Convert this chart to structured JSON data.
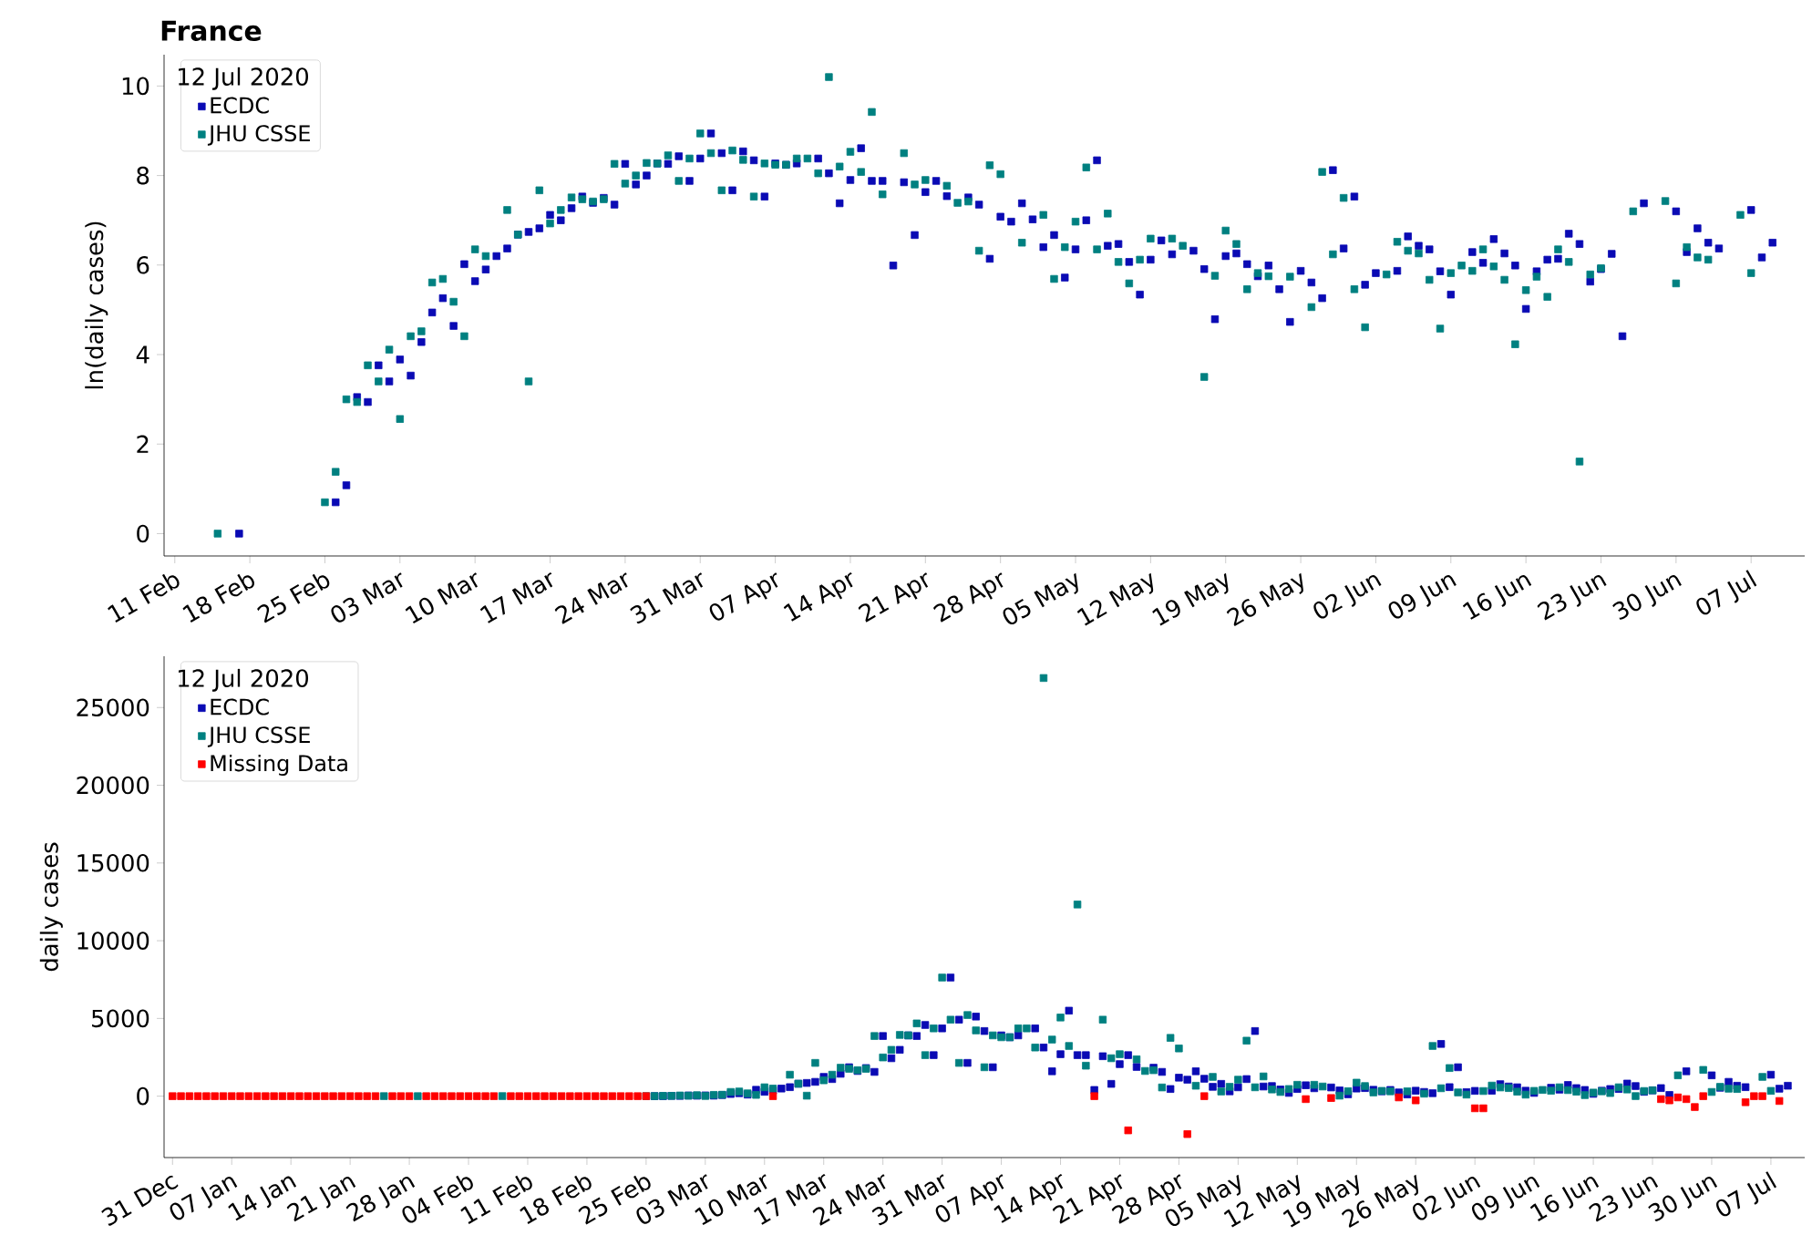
{
  "chart_data": [
    {
      "type": "scatter",
      "title": "France",
      "ylabel": "ln(daily cases)",
      "legend_title": "12 Jul 2020",
      "legend": "top left",
      "marker": "square",
      "xlim": [
        "2020-02-10",
        "2020-07-12"
      ],
      "ylim": [
        -0.5,
        10.7
      ],
      "yticks": [
        0,
        2,
        4,
        6,
        8,
        10
      ],
      "xticks": [
        {
          "value": "2020-02-11",
          "label": "11 Feb"
        },
        {
          "value": "2020-02-18",
          "label": "18 Feb"
        },
        {
          "value": "2020-02-25",
          "label": "25 Feb"
        },
        {
          "value": "2020-03-03",
          "label": "03 Mar"
        },
        {
          "value": "2020-03-10",
          "label": "10 Mar"
        },
        {
          "value": "2020-03-17",
          "label": "17 Mar"
        },
        {
          "value": "2020-03-24",
          "label": "24 Mar"
        },
        {
          "value": "2020-03-31",
          "label": "31 Mar"
        },
        {
          "value": "2020-04-07",
          "label": "07 Apr"
        },
        {
          "value": "2020-04-14",
          "label": "14 Apr"
        },
        {
          "value": "2020-04-21",
          "label": "21 Apr"
        },
        {
          "value": "2020-04-28",
          "label": "28 Apr"
        },
        {
          "value": "2020-05-05",
          "label": "05 May"
        },
        {
          "value": "2020-05-12",
          "label": "12 May"
        },
        {
          "value": "2020-05-19",
          "label": "19 May"
        },
        {
          "value": "2020-05-26",
          "label": "26 May"
        },
        {
          "value": "2020-06-02",
          "label": "02 Jun"
        },
        {
          "value": "2020-06-09",
          "label": "09 Jun"
        },
        {
          "value": "2020-06-16",
          "label": "16 Jun"
        },
        {
          "value": "2020-06-23",
          "label": "23 Jun"
        },
        {
          "value": "2020-06-30",
          "label": "30 Jun"
        },
        {
          "value": "2020-07-07",
          "label": "07 Jul"
        }
      ],
      "series": [
        {
          "name": "ECDC",
          "color": "#0a0ab4",
          "x": [
            "2020-02-17",
            "2020-02-26",
            "2020-02-27",
            "2020-02-28",
            "2020-02-29",
            "2020-03-01",
            "2020-03-02",
            "2020-03-03",
            "2020-03-04",
            "2020-03-05",
            "2020-03-06",
            "2020-03-07",
            "2020-03-08",
            "2020-03-09",
            "2020-03-10",
            "2020-03-11",
            "2020-03-12",
            "2020-03-13",
            "2020-03-14",
            "2020-03-15",
            "2020-03-16",
            "2020-03-17",
            "2020-03-18",
            "2020-03-19",
            "2020-03-20",
            "2020-03-21",
            "2020-03-22",
            "2020-03-23",
            "2020-03-24",
            "2020-03-25",
            "2020-03-26",
            "2020-03-27",
            "2020-03-28",
            "2020-03-29",
            "2020-03-30",
            "2020-03-31",
            "2020-04-01",
            "2020-04-02",
            "2020-04-03",
            "2020-04-04",
            "2020-04-05",
            "2020-04-06",
            "2020-04-07",
            "2020-04-08",
            "2020-04-09",
            "2020-04-11",
            "2020-04-12",
            "2020-04-13",
            "2020-04-14",
            "2020-04-15",
            "2020-04-16",
            "2020-04-17",
            "2020-04-18",
            "2020-04-19",
            "2020-04-20",
            "2020-04-21",
            "2020-04-22",
            "2020-04-23",
            "2020-04-25",
            "2020-04-26",
            "2020-04-27",
            "2020-04-28",
            "2020-04-29",
            "2020-04-30",
            "2020-05-01",
            "2020-05-02",
            "2020-05-03",
            "2020-05-04",
            "2020-05-05",
            "2020-05-06",
            "2020-05-07",
            "2020-05-08",
            "2020-05-09",
            "2020-05-10",
            "2020-05-11",
            "2020-05-12",
            "2020-05-13",
            "2020-05-14",
            "2020-05-16",
            "2020-05-17",
            "2020-05-18",
            "2020-05-19",
            "2020-05-20",
            "2020-05-21",
            "2020-05-22",
            "2020-05-23",
            "2020-05-24",
            "2020-05-25",
            "2020-05-26",
            "2020-05-27",
            "2020-05-28",
            "2020-05-29",
            "2020-05-30",
            "2020-05-31",
            "2020-06-01",
            "2020-06-02",
            "2020-06-04",
            "2020-06-05",
            "2020-06-06",
            "2020-06-07",
            "2020-06-08",
            "2020-06-09",
            "2020-06-11",
            "2020-06-12",
            "2020-06-13",
            "2020-06-14",
            "2020-06-15",
            "2020-06-16",
            "2020-06-17",
            "2020-06-18",
            "2020-06-19",
            "2020-06-20",
            "2020-06-21",
            "2020-06-22",
            "2020-06-23",
            "2020-06-24",
            "2020-06-25",
            "2020-06-27",
            "2020-06-30",
            "2020-07-01",
            "2020-07-02",
            "2020-07-03",
            "2020-07-04",
            "2020-07-07",
            "2020-07-08",
            "2020-07-09"
          ],
          "values": [
            0,
            0.7,
            1.08,
            3.05,
            2.94,
            3.76,
            3.4,
            3.89,
            3.53,
            4.28,
            4.94,
            5.26,
            4.64,
            6.02,
            5.64,
            5.9,
            6.2,
            6.37,
            6.68,
            6.74,
            6.82,
            7.12,
            7.0,
            7.27,
            7.53,
            7.39,
            7.5,
            7.35,
            8.26,
            7.8,
            8.0,
            8.27,
            8.26,
            8.43,
            7.88,
            8.38,
            8.94,
            8.5,
            7.67,
            8.54,
            8.34,
            7.53,
            8.27,
            8.24,
            8.27,
            8.38,
            8.05,
            7.38,
            7.9,
            8.61,
            7.88,
            7.88,
            5.99,
            7.85,
            6.67,
            7.63,
            7.88,
            7.54,
            7.51,
            7.35,
            6.14,
            7.08,
            6.97,
            7.38,
            7.02,
            6.4,
            6.67,
            5.72,
            6.35,
            7.0,
            8.34,
            6.43,
            6.47,
            6.07,
            5.34,
            6.12,
            6.55,
            6.24,
            6.32,
            5.91,
            4.79,
            6.2,
            6.26,
            6.02,
            5.75,
            5.99,
            5.46,
            4.73,
            5.87,
            5.61,
            5.26,
            8.12,
            6.37,
            7.53,
            5.56,
            5.82,
            5.87,
            6.64,
            6.43,
            6.35,
            5.86,
            5.34,
            6.29,
            6.05,
            6.58,
            6.26,
            5.99,
            5.02,
            5.86,
            6.12,
            6.14,
            6.7,
            6.47,
            5.63,
            5.91,
            6.25,
            4.41,
            7.38,
            7.2,
            6.29,
            6.82,
            6.5,
            6.37,
            7.23,
            6.17,
            6.5
          ]
        },
        {
          "name": "JHU CSSE",
          "color": "#008080",
          "x": [
            "2020-02-15",
            "2020-02-25",
            "2020-02-26",
            "2020-02-27",
            "2020-02-28",
            "2020-02-29",
            "2020-03-01",
            "2020-03-02",
            "2020-03-03",
            "2020-03-04",
            "2020-03-05",
            "2020-03-06",
            "2020-03-07",
            "2020-03-08",
            "2020-03-09",
            "2020-03-10",
            "2020-03-11",
            "2020-03-13",
            "2020-03-14",
            "2020-03-15",
            "2020-03-16",
            "2020-03-17",
            "2020-03-18",
            "2020-03-19",
            "2020-03-20",
            "2020-03-21",
            "2020-03-22",
            "2020-03-23",
            "2020-03-24",
            "2020-03-25",
            "2020-03-26",
            "2020-03-27",
            "2020-03-28",
            "2020-03-29",
            "2020-03-30",
            "2020-03-31",
            "2020-04-01",
            "2020-04-02",
            "2020-04-03",
            "2020-04-04",
            "2020-04-05",
            "2020-04-06",
            "2020-04-07",
            "2020-04-08",
            "2020-04-09",
            "2020-04-10",
            "2020-04-11",
            "2020-04-12",
            "2020-04-13",
            "2020-04-14",
            "2020-04-15",
            "2020-04-16",
            "2020-04-17",
            "2020-04-19",
            "2020-04-20",
            "2020-04-21",
            "2020-04-23",
            "2020-04-24",
            "2020-04-25",
            "2020-04-26",
            "2020-04-27",
            "2020-04-28",
            "2020-04-30",
            "2020-05-02",
            "2020-05-03",
            "2020-05-04",
            "2020-05-05",
            "2020-05-06",
            "2020-05-07",
            "2020-05-08",
            "2020-05-09",
            "2020-05-10",
            "2020-05-11",
            "2020-05-12",
            "2020-05-14",
            "2020-05-15",
            "2020-05-17",
            "2020-05-18",
            "2020-05-19",
            "2020-05-20",
            "2020-05-21",
            "2020-05-22",
            "2020-05-23",
            "2020-05-25",
            "2020-05-27",
            "2020-05-28",
            "2020-05-29",
            "2020-05-30",
            "2020-05-31",
            "2020-06-01",
            "2020-06-03",
            "2020-06-04",
            "2020-06-05",
            "2020-06-06",
            "2020-06-07",
            "2020-06-08",
            "2020-06-09",
            "2020-06-10",
            "2020-06-11",
            "2020-06-12",
            "2020-06-13",
            "2020-06-14",
            "2020-06-15",
            "2020-06-16",
            "2020-06-17",
            "2020-06-18",
            "2020-06-19",
            "2020-06-20",
            "2020-06-21",
            "2020-06-22",
            "2020-06-23",
            "2020-06-26",
            "2020-06-29",
            "2020-06-30",
            "2020-07-01",
            "2020-07-02",
            "2020-07-03",
            "2020-07-06",
            "2020-07-07"
          ],
          "values": [
            0,
            0.7,
            1.38,
            3.0,
            2.94,
            3.76,
            3.4,
            4.11,
            2.56,
            4.41,
            4.52,
            5.61,
            5.69,
            5.18,
            4.41,
            6.35,
            6.2,
            7.23,
            6.68,
            3.4,
            7.67,
            6.93,
            7.23,
            7.51,
            7.47,
            7.42,
            7.47,
            8.26,
            7.82,
            8.0,
            8.28,
            8.27,
            8.45,
            7.88,
            8.38,
            8.94,
            8.5,
            7.67,
            8.56,
            8.35,
            7.53,
            8.27,
            8.24,
            8.24,
            8.38,
            8.38,
            8.05,
            10.2,
            8.2,
            8.53,
            8.08,
            9.42,
            7.58,
            8.5,
            7.8,
            7.9,
            7.77,
            7.39,
            7.42,
            6.32,
            8.23,
            8.03,
            6.5,
            7.12,
            5.69,
            6.4,
            6.97,
            8.18,
            6.35,
            7.15,
            6.07,
            5.59,
            6.12,
            6.59,
            6.59,
            6.43,
            3.5,
            5.76,
            6.77,
            6.47,
            5.46,
            5.82,
            5.75,
            5.74,
            5.06,
            8.08,
            6.24,
            7.5,
            5.46,
            4.61,
            5.79,
            6.52,
            6.32,
            6.26,
            5.67,
            4.58,
            5.82,
            5.99,
            5.87,
            6.35,
            5.97,
            5.67,
            4.23,
            5.44,
            5.74,
            5.29,
            6.35,
            6.07,
            1.61,
            5.79,
            5.93,
            7.2,
            7.43,
            5.59,
            6.4,
            6.17,
            6.12,
            7.12,
            5.82
          ]
        }
      ]
    },
    {
      "type": "scatter",
      "ylabel": "daily cases",
      "legend_title": "12 Jul 2020",
      "legend": "top left",
      "marker": "square",
      "xlim": [
        "2019-12-30",
        "2020-07-11"
      ],
      "ylim": [
        -3950,
        28300
      ],
      "yticks": [
        0,
        5000,
        10000,
        15000,
        20000,
        25000
      ],
      "xticks": [
        {
          "value": "2019-12-31",
          "label": "31 Dec"
        },
        {
          "value": "2020-01-07",
          "label": "07 Jan"
        },
        {
          "value": "2020-01-14",
          "label": "14 Jan"
        },
        {
          "value": "2020-01-21",
          "label": "21 Jan"
        },
        {
          "value": "2020-01-28",
          "label": "28 Jan"
        },
        {
          "value": "2020-02-04",
          "label": "04 Feb"
        },
        {
          "value": "2020-02-11",
          "label": "11 Feb"
        },
        {
          "value": "2020-02-18",
          "label": "18 Feb"
        },
        {
          "value": "2020-02-25",
          "label": "25 Feb"
        },
        {
          "value": "2020-03-03",
          "label": "03 Mar"
        },
        {
          "value": "2020-03-10",
          "label": "10 Mar"
        },
        {
          "value": "2020-03-17",
          "label": "17 Mar"
        },
        {
          "value": "2020-03-24",
          "label": "24 Mar"
        },
        {
          "value": "2020-03-31",
          "label": "31 Mar"
        },
        {
          "value": "2020-04-07",
          "label": "07 Apr"
        },
        {
          "value": "2020-04-14",
          "label": "14 Apr"
        },
        {
          "value": "2020-04-21",
          "label": "21 Apr"
        },
        {
          "value": "2020-04-28",
          "label": "28 Apr"
        },
        {
          "value": "2020-05-05",
          "label": "05 May"
        },
        {
          "value": "2020-05-12",
          "label": "12 May"
        },
        {
          "value": "2020-05-19",
          "label": "19 May"
        },
        {
          "value": "2020-05-26",
          "label": "26 May"
        },
        {
          "value": "2020-06-02",
          "label": "02 Jun"
        },
        {
          "value": "2020-06-09",
          "label": "09 Jun"
        },
        {
          "value": "2020-06-16",
          "label": "16 Jun"
        },
        {
          "value": "2020-06-23",
          "label": "23 Jun"
        },
        {
          "value": "2020-06-30",
          "label": "30 Jun"
        },
        {
          "value": "2020-07-07",
          "label": "07 Jul"
        }
      ],
      "series": [
        {
          "name": "ECDC",
          "color": "#0a0ab4",
          "x": [
            "2020-02-26",
            "2020-02-27",
            "2020-02-28",
            "2020-02-29",
            "2020-03-01",
            "2020-03-02",
            "2020-03-03",
            "2020-03-04",
            "2020-03-05",
            "2020-03-06",
            "2020-03-07",
            "2020-03-08",
            "2020-03-09",
            "2020-03-10",
            "2020-03-11",
            "2020-03-12",
            "2020-03-13",
            "2020-03-14",
            "2020-03-15",
            "2020-03-16",
            "2020-03-17",
            "2020-03-18",
            "2020-03-19",
            "2020-03-20",
            "2020-03-21",
            "2020-03-22",
            "2020-03-23",
            "2020-03-24",
            "2020-03-25",
            "2020-03-26",
            "2020-03-27",
            "2020-03-28",
            "2020-03-29",
            "2020-03-30",
            "2020-03-31",
            "2020-04-01",
            "2020-04-02",
            "2020-04-03",
            "2020-04-04",
            "2020-04-05",
            "2020-04-06",
            "2020-04-07",
            "2020-04-08",
            "2020-04-09",
            "2020-04-11",
            "2020-04-12",
            "2020-04-13",
            "2020-04-14",
            "2020-04-15",
            "2020-04-16",
            "2020-04-17",
            "2020-04-18",
            "2020-04-19",
            "2020-04-20",
            "2020-04-21",
            "2020-04-22",
            "2020-04-23",
            "2020-04-25",
            "2020-04-26",
            "2020-04-27",
            "2020-04-28",
            "2020-04-29",
            "2020-04-30",
            "2020-05-01",
            "2020-05-02",
            "2020-05-03",
            "2020-05-04",
            "2020-05-05",
            "2020-05-06",
            "2020-05-07",
            "2020-05-08",
            "2020-05-09",
            "2020-05-10",
            "2020-05-11",
            "2020-05-12",
            "2020-05-13",
            "2020-05-14",
            "2020-05-16",
            "2020-05-17",
            "2020-05-18",
            "2020-05-19",
            "2020-05-20",
            "2020-05-21",
            "2020-05-22",
            "2020-05-23",
            "2020-05-24",
            "2020-05-25",
            "2020-05-26",
            "2020-05-27",
            "2020-05-28",
            "2020-05-29",
            "2020-05-30",
            "2020-05-31",
            "2020-06-01",
            "2020-06-02",
            "2020-06-04",
            "2020-06-05",
            "2020-06-06",
            "2020-06-07",
            "2020-06-08",
            "2020-06-09",
            "2020-06-11",
            "2020-06-12",
            "2020-06-13",
            "2020-06-14",
            "2020-06-15",
            "2020-06-16",
            "2020-06-17",
            "2020-06-18",
            "2020-06-19",
            "2020-06-20",
            "2020-06-21",
            "2020-06-22",
            "2020-06-23",
            "2020-06-24",
            "2020-06-25",
            "2020-06-27",
            "2020-06-30",
            "2020-07-01",
            "2020-07-02",
            "2020-07-03",
            "2020-07-04",
            "2020-07-07",
            "2020-07-08",
            "2020-07-09"
          ],
          "values": [
            2,
            3,
            21,
            19,
            43,
            30,
            49,
            34,
            72,
            140,
            190,
            100,
            410,
            280,
            370,
            490,
            580,
            800,
            850,
            920,
            1240,
            1100,
            1440,
            1860,
            1620,
            1810,
            1560,
            3870,
            2440,
            2980,
            3910,
            3870,
            4580,
            2640,
            4360,
            7630,
            4920,
            2140,
            5120,
            4190,
            1860,
            3910,
            3790,
            3910,
            4360,
            3130,
            1600,
            2700,
            5500,
            2640,
            2640,
            400,
            2570,
            790,
            2060,
            2640,
            1880,
            1830,
            1560,
            460,
            1190,
            1060,
            1600,
            1120,
            600,
            790,
            310,
            570,
            1100,
            4190,
            620,
            650,
            430,
            210,
            460,
            700,
            510,
            560,
            370,
            120,
            490,
            520,
            410,
            310,
            400,
            240,
            110,
            350,
            270,
            190,
            3360,
            580,
            1860,
            260,
            340,
            350,
            770,
            620,
            570,
            350,
            210,
            540,
            420,
            720,
            520,
            400,
            150,
            350,
            460,
            460,
            810,
            650,
            280,
            370,
            520,
            80,
            1600,
            1340,
            540,
            920,
            670,
            580,
            1380,
            480,
            670
          ]
        },
        {
          "name": "JHU CSSE",
          "color": "#008080",
          "x": [
            "2020-01-25",
            "2020-01-29",
            "2020-02-08",
            "2020-02-25",
            "2020-02-26",
            "2020-02-27",
            "2020-02-28",
            "2020-02-29",
            "2020-03-01",
            "2020-03-02",
            "2020-03-03",
            "2020-03-04",
            "2020-03-05",
            "2020-03-06",
            "2020-03-07",
            "2020-03-08",
            "2020-03-09",
            "2020-03-10",
            "2020-03-11",
            "2020-03-13",
            "2020-03-14",
            "2020-03-15",
            "2020-03-16",
            "2020-03-17",
            "2020-03-18",
            "2020-03-19",
            "2020-03-20",
            "2020-03-21",
            "2020-03-22",
            "2020-03-23",
            "2020-03-24",
            "2020-03-25",
            "2020-03-26",
            "2020-03-27",
            "2020-03-28",
            "2020-03-29",
            "2020-03-30",
            "2020-03-31",
            "2020-04-01",
            "2020-04-02",
            "2020-04-03",
            "2020-04-04",
            "2020-04-05",
            "2020-04-06",
            "2020-04-07",
            "2020-04-08",
            "2020-04-09",
            "2020-04-10",
            "2020-04-11",
            "2020-04-12",
            "2020-04-13",
            "2020-04-14",
            "2020-04-15",
            "2020-04-16",
            "2020-04-17",
            "2020-04-19",
            "2020-04-20",
            "2020-04-21",
            "2020-04-23",
            "2020-04-24",
            "2020-04-25",
            "2020-04-26",
            "2020-04-27",
            "2020-04-28",
            "2020-04-30",
            "2020-05-02",
            "2020-05-03",
            "2020-05-04",
            "2020-05-05",
            "2020-05-06",
            "2020-05-07",
            "2020-05-08",
            "2020-05-09",
            "2020-05-10",
            "2020-05-11",
            "2020-05-12",
            "2020-05-14",
            "2020-05-15",
            "2020-05-17",
            "2020-05-18",
            "2020-05-19",
            "2020-05-20",
            "2020-05-21",
            "2020-05-22",
            "2020-05-23",
            "2020-05-25",
            "2020-05-27",
            "2020-05-28",
            "2020-05-29",
            "2020-05-30",
            "2020-05-31",
            "2020-06-01",
            "2020-06-03",
            "2020-06-04",
            "2020-06-05",
            "2020-06-06",
            "2020-06-07",
            "2020-06-08",
            "2020-06-09",
            "2020-06-10",
            "2020-06-11",
            "2020-06-12",
            "2020-06-13",
            "2020-06-14",
            "2020-06-15",
            "2020-06-16",
            "2020-06-17",
            "2020-06-18",
            "2020-06-19",
            "2020-06-20",
            "2020-06-21",
            "2020-06-22",
            "2020-06-23",
            "2020-06-26",
            "2020-06-29",
            "2020-06-30",
            "2020-07-01",
            "2020-07-02",
            "2020-07-03",
            "2020-07-06",
            "2020-07-07"
          ],
          "values": [
            2,
            1,
            5,
            2,
            4,
            20,
            19,
            43,
            30,
            61,
            13,
            82,
            92,
            270,
            300,
            180,
            82,
            570,
            490,
            1380,
            800,
            30,
            2140,
            1020,
            1380,
            1830,
            1760,
            1670,
            1760,
            3870,
            2490,
            2980,
            3940,
            3910,
            4680,
            2640,
            4360,
            7630,
            4920,
            2140,
            5220,
            4230,
            1860,
            3910,
            3790,
            3790,
            4360,
            4360,
            3130,
            26900,
            3640,
            5060,
            3230,
            12330,
            1960,
            4920,
            2440,
            2700,
            2370,
            1620,
            1670,
            560,
            3750,
            3070,
            670,
            1240,
            300,
            600,
            1060,
            3570,
            570,
            1270,
            430,
            270,
            460,
            730,
            730,
            620,
            33,
            320,
            870,
            650,
            240,
            340,
            310,
            310,
            160,
            3230,
            510,
            1810,
            240,
            100,
            330,
            680,
            560,
            520,
            290,
            98,
            340,
            400,
            350,
            570,
            390,
            290,
            69,
            230,
            310,
            200,
            570,
            430,
            5,
            330,
            380,
            1340,
            1690,
            270,
            600,
            480,
            460,
            1240,
            340
          ]
        },
        {
          "name": "Missing Data",
          "color": "#ff0000",
          "x": [
            "2019-12-31",
            "2020-01-01",
            "2020-01-02",
            "2020-01-03",
            "2020-01-04",
            "2020-01-05",
            "2020-01-06",
            "2020-01-07",
            "2020-01-08",
            "2020-01-09",
            "2020-01-10",
            "2020-01-11",
            "2020-01-12",
            "2020-01-13",
            "2020-01-14",
            "2020-01-15",
            "2020-01-16",
            "2020-01-17",
            "2020-01-18",
            "2020-01-19",
            "2020-01-20",
            "2020-01-21",
            "2020-01-22",
            "2020-01-23",
            "2020-01-24",
            "2020-01-26",
            "2020-01-27",
            "2020-01-28",
            "2020-01-30",
            "2020-01-31",
            "2020-02-01",
            "2020-02-02",
            "2020-02-03",
            "2020-02-04",
            "2020-02-05",
            "2020-02-06",
            "2020-02-07",
            "2020-02-09",
            "2020-02-10",
            "2020-02-11",
            "2020-02-12",
            "2020-02-13",
            "2020-02-14",
            "2020-02-15",
            "2020-02-16",
            "2020-02-17",
            "2020-02-18",
            "2020-02-19",
            "2020-02-20",
            "2020-02-21",
            "2020-02-22",
            "2020-02-23",
            "2020-02-24",
            "2020-02-25",
            "2020-03-11",
            "2020-04-18",
            "2020-04-22",
            "2020-04-29",
            "2020-05-01",
            "2020-05-13",
            "2020-05-16",
            "2020-05-24",
            "2020-05-26",
            "2020-06-02",
            "2020-06-03",
            "2020-06-24",
            "2020-06-25",
            "2020-06-26",
            "2020-06-27",
            "2020-06-28",
            "2020-06-29",
            "2020-07-04",
            "2020-07-05",
            "2020-07-06",
            "2020-07-08"
          ],
          "values": [
            0,
            0,
            0,
            0,
            0,
            0,
            0,
            0,
            0,
            0,
            0,
            0,
            0,
            0,
            0,
            0,
            0,
            0,
            0,
            0,
            0,
            0,
            0,
            0,
            0,
            0,
            0,
            0,
            0,
            0,
            0,
            0,
            0,
            0,
            0,
            0,
            0,
            0,
            0,
            0,
            0,
            0,
            0,
            0,
            0,
            0,
            0,
            0,
            0,
            0,
            0,
            0,
            0,
            0,
            0,
            0,
            -2200,
            -2440,
            0,
            -190,
            -120,
            -80,
            -270,
            -780,
            -780,
            -190,
            -270,
            -80,
            -190,
            -700,
            0,
            -390,
            0,
            0,
            -310
          ]
        }
      ]
    }
  ]
}
